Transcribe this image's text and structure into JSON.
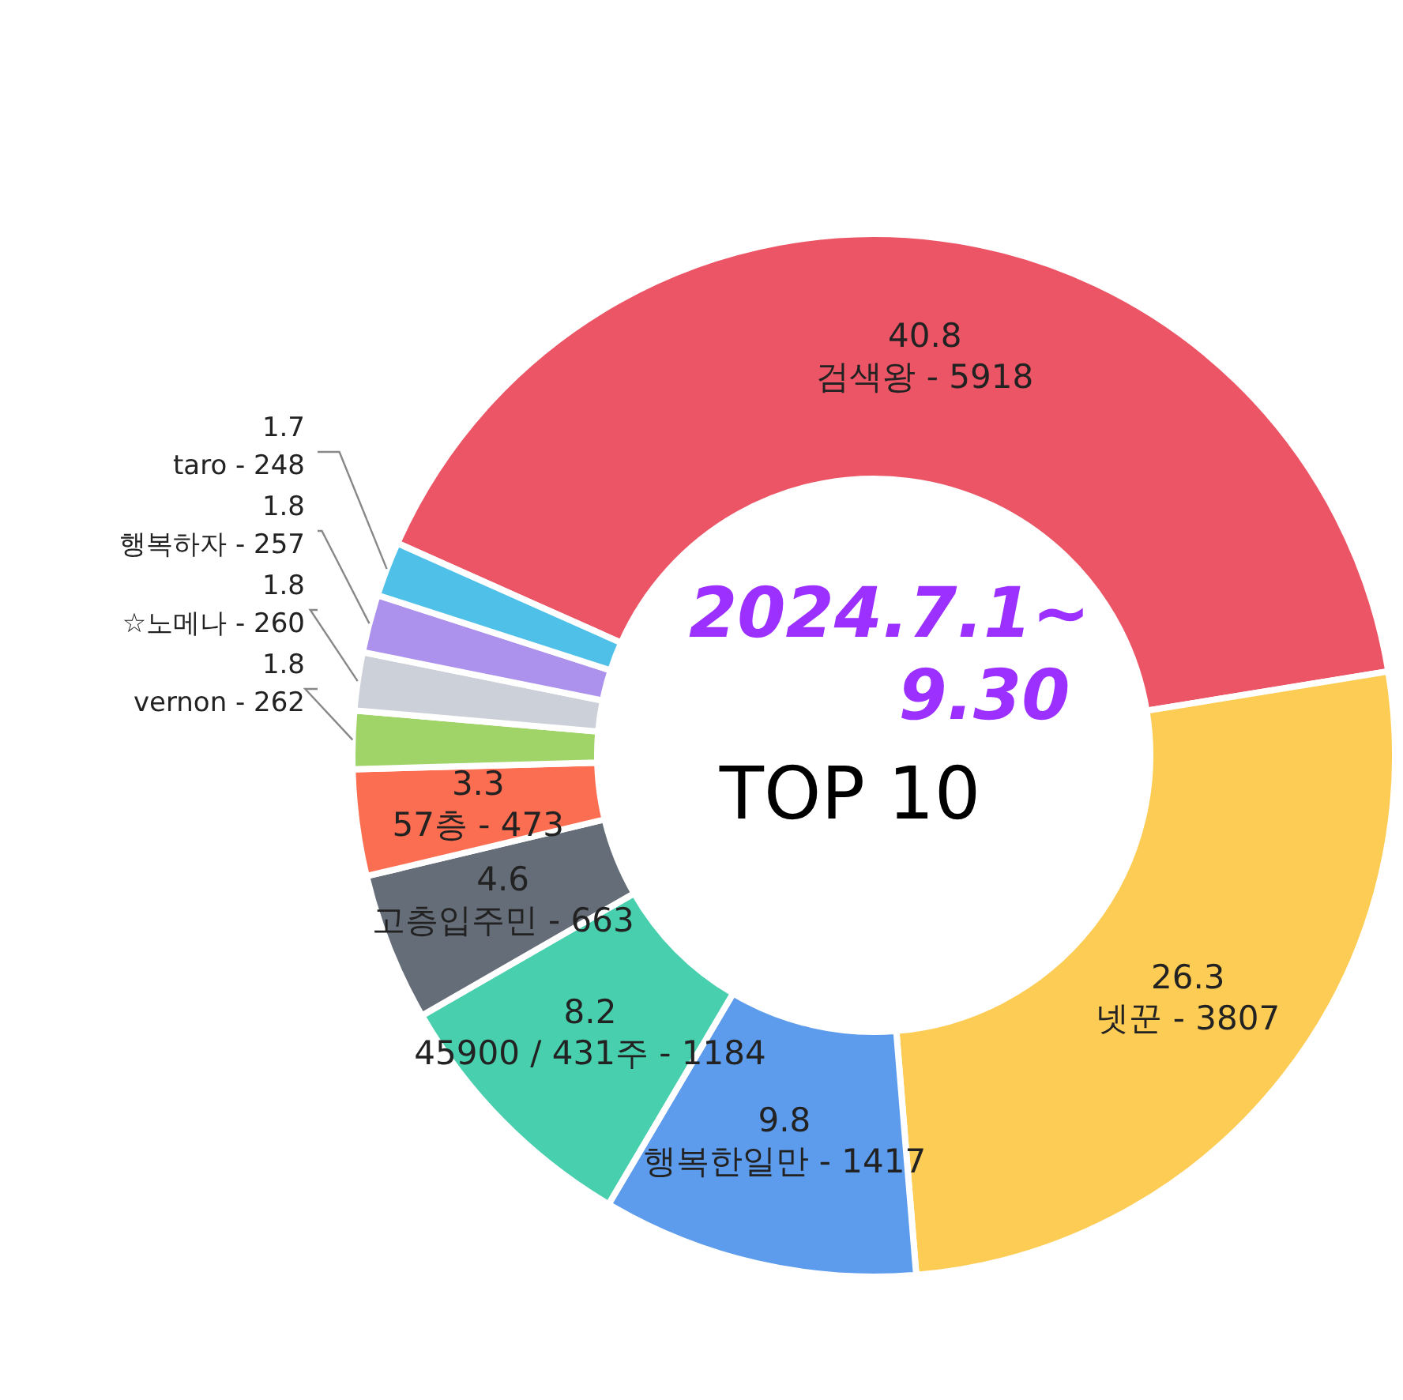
{
  "chart_data": {
    "type": "donut",
    "title": "TOP 10",
    "categories": [
      "검색왕 - 5918",
      "넷꾼 - 3807",
      "행복한일만 - 1417",
      "45900 / 431주 - 1184",
      "고층입주민 - 663",
      "57층 - 473",
      "vernon - 262",
      "☆노메나 - 260",
      "행복하자 - 257",
      "taro - 248"
    ],
    "values": [
      40.8,
      26.3,
      9.8,
      8.2,
      4.6,
      3.3,
      1.8,
      1.8,
      1.8,
      1.7
    ],
    "data_labels": true,
    "colors": [
      "#eb5565",
      "#fdcc55",
      "#5d9cec",
      "#48cfad",
      "#656d78",
      "#fc6e51",
      "#a0d468",
      "#ccd1d9",
      "#ac92ec",
      "#4fc1e9"
    ],
    "annotations": [
      "2024.7.1~",
      "9.30"
    ]
  }
}
